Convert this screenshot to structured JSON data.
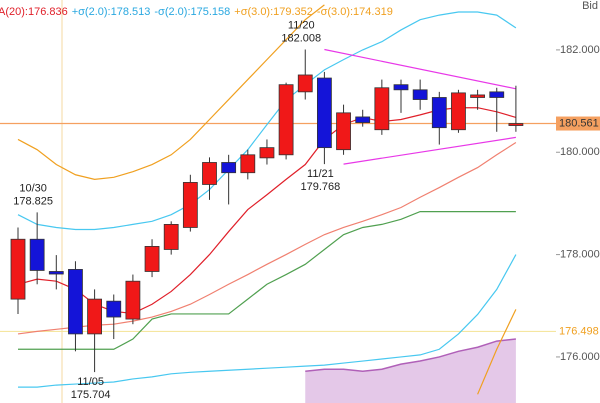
{
  "chart_data": {
    "type": "candlestick",
    "legend": [
      {
        "text": "A(20):176.836",
        "color": "#e0202a"
      },
      {
        "text": "+σ(2.0):178.513",
        "color": "#2aa8e0"
      },
      {
        "text": "-σ(2.0):175.158",
        "color": "#2aa8e0"
      },
      {
        "text": "+σ(3.0):179.352",
        "color": "#f0a020"
      },
      {
        "text": "-σ(3.0):174.319",
        "color": "#f0a020"
      }
    ],
    "corner_label": "Bid",
    "categories": [
      null,
      null,
      null,
      null,
      null,
      null,
      null,
      null,
      null,
      null,
      null,
      null,
      null,
      null,
      null,
      null,
      null,
      null,
      null,
      null,
      null,
      null,
      null,
      null,
      null,
      null,
      null
    ],
    "open": [
      177.13,
      178.3,
      177.67,
      177.71,
      176.45,
      177.09,
      176.74,
      177.67,
      178.1,
      178.53,
      179.37,
      179.8,
      179.6,
      179.89,
      179.95,
      181.18,
      181.45,
      180.05,
      180.69,
      180.44,
      181.32,
      181.22,
      181.07,
      180.44,
      181.07,
      181.18,
      180.54
    ],
    "high": [
      178.53,
      178.825,
      177.99,
      177.87,
      177.32,
      177.22,
      177.61,
      178.3,
      178.65,
      179.56,
      179.9,
      179.95,
      180.05,
      180.25,
      181.36,
      182.008,
      181.57,
      180.93,
      180.83,
      181.42,
      181.42,
      181.42,
      181.18,
      181.22,
      181.22,
      181.26,
      181.3
    ],
    "low": [
      176.84,
      177.42,
      177.32,
      176.11,
      175.704,
      176.35,
      176.64,
      177.56,
      178.0,
      178.45,
      179.07,
      178.98,
      179.47,
      179.76,
      179.86,
      181.03,
      179.768,
      179.95,
      180.5,
      180.34,
      180.77,
      180.83,
      180.15,
      180.38,
      180.83,
      180.4,
      180.4
    ],
    "close": [
      178.3,
      177.69,
      177.62,
      176.45,
      177.13,
      176.78,
      177.48,
      178.16,
      178.59,
      179.41,
      179.8,
      179.6,
      179.95,
      180.09,
      181.32,
      181.51,
      180.09,
      180.77,
      180.58,
      181.26,
      181.22,
      181.03,
      180.48,
      181.16,
      181.12,
      181.07,
      180.561
    ],
    "up_color": "#f01818",
    "down_color": "#1414d8",
    "series": [
      {
        "color": "#f0a020",
        "values": [
          180.25,
          180.05,
          179.76,
          179.56,
          179.47,
          179.51,
          179.62,
          179.76,
          179.95,
          180.25,
          180.64,
          181.03,
          181.42,
          181.81,
          182.2,
          182.59,
          182.88,
          null,
          null,
          null,
          null,
          null,
          null,
          null,
          null,
          null,
          null
        ]
      },
      {
        "color": "#f0a020",
        "values": [
          null,
          null,
          null,
          null,
          null,
          null,
          null,
          null,
          null,
          null,
          null,
          null,
          null,
          null,
          null,
          null,
          null,
          null,
          null,
          null,
          null,
          null,
          null,
          null,
          175.27,
          176.15,
          176.93
        ]
      },
      {
        "color": "#48c8f0",
        "values": [
          178.78,
          178.59,
          178.53,
          178.49,
          178.49,
          178.53,
          178.59,
          178.65,
          178.78,
          178.98,
          179.27,
          179.66,
          180.05,
          180.54,
          181.02,
          181.32,
          181.61,
          181.81,
          182.0,
          182.16,
          182.39,
          182.59,
          182.68,
          182.74,
          182.74,
          182.68,
          182.43
        ]
      },
      {
        "color": "#48c8f0",
        "values": [
          175.41,
          175.41,
          175.45,
          175.47,
          175.49,
          175.51,
          175.57,
          175.61,
          175.67,
          175.7,
          175.72,
          175.74,
          175.76,
          175.78,
          175.8,
          175.82,
          175.84,
          175.88,
          175.92,
          175.96,
          176.0,
          176.04,
          176.15,
          176.45,
          176.83,
          177.32,
          178.0
        ]
      },
      {
        "color": "#f08070",
        "values": [
          176.45,
          176.5,
          176.54,
          176.58,
          176.62,
          176.64,
          176.7,
          176.78,
          176.89,
          177.03,
          177.22,
          177.42,
          177.61,
          177.81,
          178.0,
          178.2,
          178.39,
          178.53,
          178.65,
          178.78,
          178.92,
          179.12,
          179.31,
          179.51,
          179.7,
          179.95,
          180.19
        ]
      },
      {
        "color": "#e0202a",
        "values": [
          177.42,
          177.52,
          177.48,
          177.32,
          177.03,
          176.89,
          176.85,
          177.03,
          177.28,
          177.61,
          178.0,
          178.45,
          178.88,
          179.17,
          179.47,
          179.76,
          180.25,
          180.54,
          180.68,
          180.6,
          180.64,
          180.73,
          180.83,
          180.87,
          180.87,
          180.79,
          180.68
        ]
      },
      {
        "color": "#50a050",
        "values": [
          176.15,
          176.15,
          176.15,
          176.15,
          176.15,
          176.15,
          176.35,
          176.74,
          176.84,
          176.84,
          176.84,
          176.84,
          177.13,
          177.42,
          177.61,
          177.81,
          178.1,
          178.39,
          178.53,
          178.59,
          178.69,
          178.84,
          178.84,
          178.84,
          178.84,
          178.84,
          178.84
        ]
      },
      {
        "color": "#e838e8",
        "values": [
          null,
          null,
          null,
          null,
          null,
          null,
          null,
          null,
          null,
          null,
          null,
          null,
          null,
          null,
          null,
          null,
          182.008,
          null,
          null,
          null,
          null,
          null,
          null,
          null,
          null,
          null,
          181.24
        ]
      },
      {
        "color": "#e838e8",
        "values": [
          null,
          null,
          null,
          null,
          null,
          null,
          null,
          null,
          null,
          null,
          null,
          null,
          null,
          null,
          null,
          null,
          null,
          179.768,
          null,
          null,
          null,
          null,
          null,
          null,
          null,
          null,
          180.29
        ]
      }
    ],
    "cloud": {
      "color": "#e4c8e8",
      "edge_color": "#b060b8",
      "values": [
        null,
        null,
        null,
        null,
        null,
        null,
        null,
        null,
        null,
        null,
        null,
        null,
        null,
        null,
        null,
        175.72,
        175.76,
        175.76,
        175.72,
        175.76,
        175.86,
        175.92,
        176.0,
        176.11,
        176.19,
        176.31,
        176.35
      ]
    },
    "price_lines": [
      {
        "value": 180.561,
        "color": "#f5a060",
        "boxed": true
      },
      {
        "value": 176.498,
        "color": "#f0a020",
        "boxed": false
      }
    ],
    "annotations": [
      {
        "date": "10/30",
        "value": 178.825,
        "position": "above"
      },
      {
        "date": "11/20",
        "value": 182.008,
        "position": "above"
      },
      {
        "date": "11/21",
        "value": 179.768,
        "position": "below"
      },
      {
        "date": "11/05",
        "value": 175.704,
        "position": "below"
      }
    ],
    "ylim": [
      175.1,
      182.975
    ],
    "yticks": [
      {
        "value": 176,
        "label": "176.000"
      },
      {
        "value": 178,
        "label": "178.000"
      },
      {
        "value": 180,
        "label": "180.000"
      },
      {
        "value": 182,
        "label": "182.000"
      }
    ]
  }
}
